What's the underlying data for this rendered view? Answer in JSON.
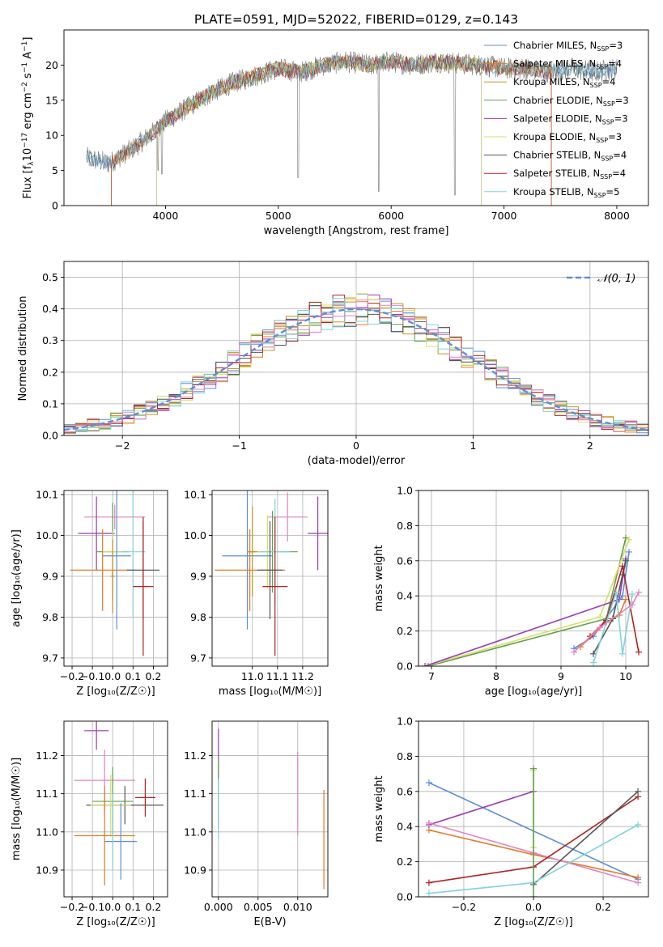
{
  "figure_title": "PLATE=0591, MJD=52022, FIBERID=0129, z=0.143",
  "colors": {
    "chabrier_miles": "#5b8fd9",
    "salpeter_miles": "#e07b24",
    "kroupa_miles": "#c89320",
    "chabrier_elodie": "#5fa04c",
    "salpeter_elodie": "#9b3bb5",
    "kroupa_elodie": "#d6e067",
    "chabrier_stelib": "#555555",
    "salpeter_stelib": "#b22222",
    "kroupa_stelib": "#7fd3dd",
    "pink": "#e383c0",
    "gauss": "#5b8fd9",
    "grid": "#b0b0b0"
  },
  "chart_data": [
    {
      "id": "spectrum",
      "type": "line",
      "xlabel": "wavelength [Angstrom, rest frame]",
      "ylabel_main": "Flux [f",
      "ylabel_sub": "λ",
      "ylabel_rest": "10",
      "ylabel_exp": "−17",
      "ylabel_tail": " erg cm",
      "ylabel_exp2": "−2",
      "ylabel_tail2": " s",
      "ylabel_exp3": "−1",
      "ylabel_tail3": " A",
      "ylabel_exp4": "−1",
      "ylabel_end": "]",
      "xlim": [
        3100,
        8280
      ],
      "ylim": [
        0,
        25
      ],
      "xticks": [
        4000,
        5000,
        6000,
        7000,
        8000
      ],
      "yticks": [
        0,
        5,
        10,
        15,
        20
      ],
      "continuum_knots": [
        [
          3300,
          6.8
        ],
        [
          3500,
          6.0
        ],
        [
          3700,
          8.0
        ],
        [
          3900,
          10.5
        ],
        [
          4000,
          12.0
        ],
        [
          4200,
          14.0
        ],
        [
          4400,
          16.0
        ],
        [
          4600,
          17.5
        ],
        [
          4800,
          18.5
        ],
        [
          5000,
          19.5
        ],
        [
          5200,
          19.0
        ],
        [
          5400,
          20.0
        ],
        [
          5600,
          20.5
        ],
        [
          5800,
          20.0
        ],
        [
          6000,
          20.5
        ],
        [
          6200,
          20.0
        ],
        [
          6400,
          20.5
        ],
        [
          6600,
          20.2
        ],
        [
          6800,
          20.0
        ],
        [
          7000,
          19.5
        ],
        [
          7200,
          19.5
        ],
        [
          7400,
          19.0
        ],
        [
          7600,
          19.5
        ],
        [
          7800,
          19.0
        ],
        [
          8000,
          19.5
        ]
      ],
      "absorption_dips": [
        [
          3934,
          5.0
        ],
        [
          3968,
          4.5
        ],
        [
          4861,
          19.0
        ],
        [
          5175,
          4.0
        ],
        [
          5890,
          2.0
        ],
        [
          6563,
          1.5
        ]
      ],
      "legend": [
        {
          "label": "Chabrier MILES, N",
          "sub": "SSP",
          "tail": "=3",
          "color_key": "chabrier_miles"
        },
        {
          "label": "Salpeter MILES, N",
          "sub": "SSP",
          "tail": "=4",
          "color_key": "salpeter_miles"
        },
        {
          "label": "Kroupa MILES, N",
          "sub": "SSP",
          "tail": "=4",
          "color_key": "kroupa_miles"
        },
        {
          "label": "Chabrier ELODIE, N",
          "sub": "SSP",
          "tail": "=3",
          "color_key": "chabrier_elodie"
        },
        {
          "label": "Salpeter ELODIE, N",
          "sub": "SSP",
          "tail": "=3",
          "color_key": "salpeter_elodie"
        },
        {
          "label": "Kroupa ELODIE, N",
          "sub": "SSP",
          "tail": "=3",
          "color_key": "kroupa_elodie"
        },
        {
          "label": "Chabrier STELIB, N",
          "sub": "SSP",
          "tail": "=4",
          "color_key": "chabrier_stelib"
        },
        {
          "label": "Salpeter STELIB, N",
          "sub": "SSP",
          "tail": "=4",
          "color_key": "salpeter_stelib"
        },
        {
          "label": "Kroupa STELIB, N",
          "sub": "SSP",
          "tail": "=5",
          "color_key": "kroupa_stelib"
        }
      ]
    },
    {
      "id": "residuals",
      "type": "histogram",
      "xlabel": "(data-model)/error",
      "ylabel": "Normed distribution",
      "xlim": [
        -2.5,
        2.5
      ],
      "ylim": [
        0,
        0.55
      ],
      "xticks": [
        -2,
        -1,
        0,
        1,
        2
      ],
      "yticks": [
        0.0,
        0.1,
        0.2,
        0.3,
        0.4,
        0.5
      ],
      "bin_width": 0.1,
      "legend_label": "𝒩(0, 1)",
      "gaussian": {
        "mean": 0,
        "sigma": 1
      }
    },
    {
      "id": "age_vs_Z",
      "type": "errorbar",
      "xlabel": "Z [log₁₀(Z/Z☉)]",
      "ylabel": "age  [log₁₀(age/yr)]",
      "xlim": [
        -0.24,
        0.27
      ],
      "ylim": [
        9.68,
        10.11
      ],
      "xticks": [
        -0.2,
        -0.1,
        0.0,
        0.1,
        0.2
      ],
      "yticks": [
        9.7,
        9.8,
        9.9,
        10.0,
        10.1
      ],
      "points": [
        {
          "x": 0.01,
          "xerr": 0.15,
          "y": 10.045,
          "yerr": 0.03,
          "color_key": "pink"
        },
        {
          "x": -0.08,
          "xerr": 0.09,
          "y": 10.005,
          "yerr": 0.09,
          "color_key": "salpeter_elodie"
        },
        {
          "x": 0.0,
          "xerr": 0.08,
          "y": 9.96,
          "yerr": 0.12,
          "color_key": "chabrier_elodie"
        },
        {
          "x": 0.0,
          "xerr": 0.05,
          "y": 9.96,
          "yerr": 0.05,
          "color_key": "kroupa_elodie"
        },
        {
          "x": 0.02,
          "xerr": 0.07,
          "y": 9.95,
          "yerr": 0.18,
          "color_key": "chabrier_miles"
        },
        {
          "x": 0.1,
          "xerr": 0.06,
          "y": 9.96,
          "yerr": 0.16,
          "color_key": "kroupa_stelib"
        },
        {
          "x": -0.05,
          "xerr": 0.16,
          "y": 9.915,
          "yerr": 0.1,
          "color_key": "salpeter_miles"
        },
        {
          "x": 0.15,
          "xerr": 0.08,
          "y": 9.915,
          "yerr": 0.12,
          "color_key": "chabrier_stelib"
        },
        {
          "x": 0.15,
          "xerr": 0.05,
          "y": 9.875,
          "yerr": 0.17,
          "color_key": "salpeter_stelib"
        },
        {
          "x": 0.0,
          "xerr": 0.01,
          "y": 9.9,
          "yerr": 0.09,
          "color_key": "kroupa_miles"
        }
      ]
    },
    {
      "id": "age_vs_mass",
      "type": "errorbar",
      "xlabel": "mass [log₁₀(M/M☉)]",
      "ylabel": "",
      "xlim": [
        10.84,
        11.3
      ],
      "ylim": [
        9.68,
        10.11
      ],
      "xticks": [
        11.0,
        11.1,
        11.2
      ],
      "yticks": [
        9.7,
        9.8,
        9.9,
        10.0,
        10.1
      ],
      "points": [
        {
          "x": 11.14,
          "xerr": 0.08,
          "y": 10.045,
          "yerr": 0.06,
          "color_key": "pink"
        },
        {
          "x": 11.26,
          "xerr": 0.04,
          "y": 10.005,
          "yerr": 0.09,
          "color_key": "salpeter_elodie"
        },
        {
          "x": 11.08,
          "xerr": 0.1,
          "y": 9.96,
          "yerr": 0.1,
          "color_key": "chabrier_elodie"
        },
        {
          "x": 11.06,
          "xerr": 0.05,
          "y": 9.96,
          "yerr": 0.09,
          "color_key": "kroupa_elodie"
        },
        {
          "x": 10.98,
          "xerr": 0.1,
          "y": 9.95,
          "yerr": 0.18,
          "color_key": "chabrier_miles"
        },
        {
          "x": 11.09,
          "xerr": 0.06,
          "y": 9.96,
          "yerr": 0.13,
          "color_key": "kroupa_stelib"
        },
        {
          "x": 10.99,
          "xerr": 0.14,
          "y": 9.915,
          "yerr": 0.1,
          "color_key": "salpeter_miles"
        },
        {
          "x": 11.07,
          "xerr": 0.05,
          "y": 9.915,
          "yerr": 0.12,
          "color_key": "chabrier_stelib"
        },
        {
          "x": 11.09,
          "xerr": 0.05,
          "y": 9.875,
          "yerr": 0.17,
          "color_key": "salpeter_stelib"
        },
        {
          "x": 11.0,
          "xerr": 0.02,
          "y": 9.96,
          "yerr": 0.11,
          "color_key": "kroupa_miles"
        }
      ]
    },
    {
      "id": "weight_vs_age",
      "type": "line",
      "xlabel": "age  [log₁₀(age/yr)]",
      "ylabel": "mass weight",
      "xlim": [
        6.8,
        10.35
      ],
      "ylim": [
        0,
        1.0
      ],
      "xticks": [
        7,
        8,
        9,
        10
      ],
      "yticks": [
        0.0,
        0.2,
        0.4,
        0.6,
        0.8,
        1.0
      ],
      "series": [
        {
          "color_key": "chabrier_elodie",
          "x": [
            6.95,
            9.7,
            10.0
          ],
          "y": [
            0.0,
            0.27,
            0.73
          ]
        },
        {
          "color_key": "kroupa_elodie",
          "x": [
            6.9,
            9.6,
            10.05
          ],
          "y": [
            0.0,
            0.28,
            0.72
          ]
        },
        {
          "color_key": "salpeter_elodie",
          "x": [
            6.9,
            9.9,
            10.0
          ],
          "y": [
            0.0,
            0.38,
            0.61
          ]
        },
        {
          "color_key": "chabrier_miles",
          "x": [
            9.2,
            9.5,
            9.95,
            10.05
          ],
          "y": [
            0.1,
            0.17,
            0.4,
            0.65
          ]
        },
        {
          "color_key": "salpeter_miles",
          "x": [
            9.3,
            9.7,
            9.9,
            10.0
          ],
          "y": [
            0.11,
            0.25,
            0.29,
            0.38
          ]
        },
        {
          "color_key": "chabrier_stelib",
          "x": [
            9.5,
            9.8,
            9.95,
            10.0
          ],
          "y": [
            0.07,
            0.27,
            0.52,
            0.6
          ]
        },
        {
          "color_key": "salpeter_stelib",
          "x": [
            9.45,
            9.7,
            9.95,
            10.2
          ],
          "y": [
            0.17,
            0.26,
            0.57,
            0.08
          ]
        },
        {
          "color_key": "kroupa_stelib",
          "x": [
            9.5,
            9.85,
            9.95,
            10.1
          ],
          "y": [
            0.02,
            0.42,
            0.07,
            0.41
          ]
        },
        {
          "color_key": "pink",
          "x": [
            9.2,
            9.6,
            10.1,
            10.2
          ],
          "y": [
            0.08,
            0.22,
            0.35,
            0.42
          ]
        }
      ]
    },
    {
      "id": "mass_vs_Z",
      "type": "errorbar",
      "xlabel": "Z [log₁₀(Z/Z☉)]",
      "ylabel": "mass [log₁₀(M/M☉)]",
      "xlim": [
        -0.24,
        0.27
      ],
      "ylim": [
        10.83,
        11.29
      ],
      "xticks": [
        -0.2,
        -0.1,
        0.0,
        0.1,
        0.2
      ],
      "yticks": [
        10.9,
        11.0,
        11.1,
        11.2
      ],
      "points": [
        {
          "x": -0.08,
          "xerr": 0.06,
          "y": 11.265,
          "yerr": 0.05,
          "color_key": "salpeter_elodie"
        },
        {
          "x": -0.04,
          "xerr": 0.15,
          "y": 11.135,
          "yerr": 0.08,
          "color_key": "pink"
        },
        {
          "x": 0.16,
          "xerr": 0.05,
          "y": 11.09,
          "yerr": 0.05,
          "color_key": "salpeter_stelib"
        },
        {
          "x": 0.06,
          "xerr": 0.19,
          "y": 11.07,
          "yerr": 0.05,
          "color_key": "chabrier_stelib"
        },
        {
          "x": 0.0,
          "xerr": 0.1,
          "y": 11.08,
          "yerr": 0.09,
          "color_key": "chabrier_elodie"
        },
        {
          "x": -0.01,
          "xerr": 0.1,
          "y": 11.07,
          "yerr": 0.08,
          "color_key": "kroupa_elodie"
        },
        {
          "x": -0.04,
          "xerr": 0.15,
          "y": 10.99,
          "yerr": 0.13,
          "color_key": "salpeter_miles"
        },
        {
          "x": 0.04,
          "xerr": 0.08,
          "y": 10.975,
          "yerr": 0.1,
          "color_key": "chabrier_miles"
        },
        {
          "x": 0.0,
          "xerr": 0.01,
          "y": 11.0,
          "yerr": 0.1,
          "color_key": "kroupa_stelib"
        }
      ]
    },
    {
      "id": "mass_vs_EBV",
      "type": "errorbar",
      "xlabel": "E(B-V)",
      "ylabel": "",
      "xlim": [
        -0.0008,
        0.0138
      ],
      "ylim": [
        10.83,
        11.29
      ],
      "xticks": [
        0.0,
        0.005,
        0.01
      ],
      "xtick_labels": [
        "0.000",
        "0.005",
        "0.010"
      ],
      "yticks": [
        10.9,
        11.0,
        11.1,
        11.2
      ],
      "points": [
        {
          "x": 0.0,
          "xerr": 0.0,
          "y": 11.2,
          "yerr": 0.07,
          "color_key": "salpeter_elodie"
        },
        {
          "x": 0.0,
          "xerr": 0.0,
          "y": 11.1,
          "yerr": 0.09,
          "color_key": "chabrier_elodie"
        },
        {
          "x": 0.0,
          "xerr": 0.0,
          "y": 11.06,
          "yerr": 0.08,
          "color_key": "kroupa_stelib"
        },
        {
          "x": 0.01,
          "xerr": 0.0,
          "y": 11.1,
          "yerr": 0.11,
          "color_key": "pink"
        },
        {
          "x": 0.0133,
          "xerr": 0.0,
          "y": 10.98,
          "yerr": 0.13,
          "color_key": "salpeter_miles"
        }
      ]
    },
    {
      "id": "weight_vs_Z",
      "type": "line",
      "xlabel": "Z [log₁₀(Z/Z☉)]",
      "ylabel": "mass weight",
      "xlim": [
        -0.33,
        0.33
      ],
      "ylim": [
        0,
        1.0
      ],
      "xticks": [
        -0.2,
        0.0,
        0.2
      ],
      "yticks": [
        0.0,
        0.2,
        0.4,
        0.6,
        0.8,
        1.0
      ],
      "series": [
        {
          "color_key": "chabrier_miles",
          "x": [
            -0.3,
            0.3
          ],
          "y": [
            0.65,
            0.1
          ]
        },
        {
          "color_key": "salpeter_miles",
          "x": [
            -0.3,
            0.0,
            0.3
          ],
          "y": [
            0.38,
            0.24,
            0.11
          ]
        },
        {
          "color_key": "salpeter_elodie",
          "x": [
            -0.3,
            0.0
          ],
          "y": [
            0.41,
            0.6
          ]
        },
        {
          "color_key": "pink",
          "x": [
            -0.3,
            0.0,
            0.3
          ],
          "y": [
            0.42,
            0.25,
            0.08
          ]
        },
        {
          "color_key": "salpeter_stelib",
          "x": [
            -0.3,
            0.0,
            0.3
          ],
          "y": [
            0.08,
            0.17,
            0.57
          ]
        },
        {
          "color_key": "chabrier_stelib",
          "x": [
            0.0,
            0.3
          ],
          "y": [
            0.07,
            0.6
          ]
        },
        {
          "color_key": "kroupa_stelib",
          "x": [
            -0.3,
            0.0,
            0.3
          ],
          "y": [
            0.02,
            0.08,
            0.41
          ]
        },
        {
          "color_key": "kroupa_elodie",
          "x": [
            0.0,
            0.0
          ],
          "y": [
            0.28,
            0.72
          ]
        },
        {
          "color_key": "chabrier_elodie",
          "x": [
            0.0,
            0.0
          ],
          "y": [
            0.0,
            0.73
          ]
        }
      ]
    }
  ]
}
